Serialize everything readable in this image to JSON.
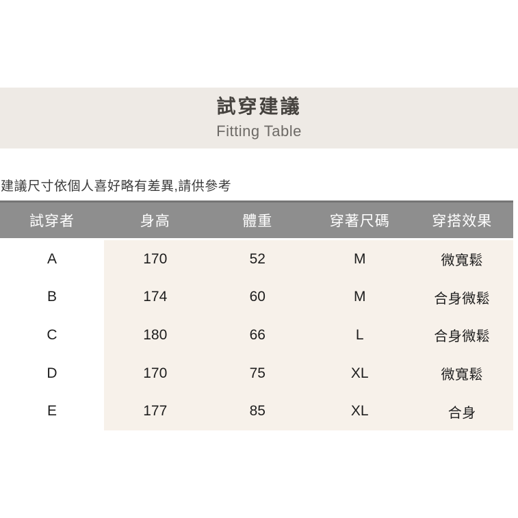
{
  "header": {
    "title": "試穿建議",
    "subtitle": "Fitting Table",
    "band_background": "#eeeae5",
    "title_color": "#45423e",
    "subtitle_color": "#6d6a66"
  },
  "note": {
    "text": "建議尺寸依個人喜好略有差異,請供參考"
  },
  "table": {
    "header_background": "#8e8e8e",
    "header_text_color": "#ffffff",
    "body_background": "#f7f1ea",
    "first_column_background": "#ffffff",
    "columns": [
      "試穿者",
      "身高",
      "體重",
      "穿著尺碼",
      "穿搭效果"
    ],
    "rows": [
      {
        "wearer": "A",
        "height": "170",
        "weight": "52",
        "size": "M",
        "effect": "微寬鬆"
      },
      {
        "wearer": "B",
        "height": "174",
        "weight": "60",
        "size": "M",
        "effect": "合身微鬆"
      },
      {
        "wearer": "C",
        "height": "180",
        "weight": "66",
        "size": "L",
        "effect": "合身微鬆"
      },
      {
        "wearer": "D",
        "height": "170",
        "weight": "75",
        "size": "XL",
        "effect": "微寬鬆"
      },
      {
        "wearer": "E",
        "height": "177",
        "weight": "85",
        "size": "XL",
        "effect": "合身"
      }
    ]
  }
}
